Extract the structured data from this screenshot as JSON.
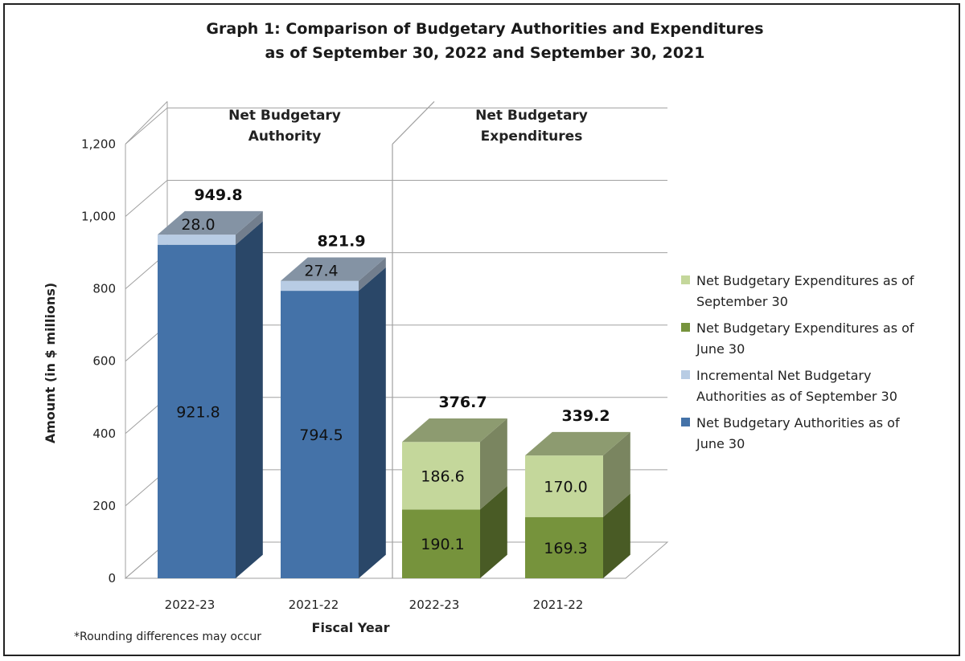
{
  "chart_data": {
    "type": "bar",
    "stacked": true,
    "title_lines": [
      "Graph 1: Comparison of Budgetary Authorities and Expenditures",
      "as of September 30, 2022 and September 30, 2021"
    ],
    "xlabel": "Fiscal Year",
    "ylabel": "Amount (in $ millions)",
    "ylim": [
      0,
      1200
    ],
    "yticks": [
      0,
      200,
      400,
      600,
      800,
      1000,
      1200
    ],
    "ytick_labels": [
      "0",
      "200",
      "400",
      "600",
      "800",
      "1,000",
      "1,200"
    ],
    "grid": true,
    "legend_position": "right",
    "panels": [
      {
        "label_lines": [
          "Net Budgetary",
          "Authority"
        ],
        "groups": [
          {
            "category": "2022-23",
            "total": 949.8,
            "total_label": "949.8",
            "segments": [
              {
                "series": "Net Budgetary Authorities as of June 30",
                "value": 921.8,
                "label": "921.8"
              },
              {
                "series": "Incremental Net Budgetary Authorities as of September 30",
                "value": 28.0,
                "label": "28.0"
              }
            ]
          },
          {
            "category": "2021-22",
            "total": 821.9,
            "total_label": "821.9",
            "segments": [
              {
                "series": "Net Budgetary Authorities as of June 30",
                "value": 794.5,
                "label": "794.5"
              },
              {
                "series": "Incremental Net Budgetary Authorities as of September 30",
                "value": 27.4,
                "label": "27.4"
              }
            ]
          }
        ]
      },
      {
        "label_lines": [
          "Net Budgetary",
          "Expenditures"
        ],
        "groups": [
          {
            "category": "2022-23",
            "total": 376.7,
            "total_label": "376.7",
            "segments": [
              {
                "series": "Net Budgetary Expenditures as of June 30",
                "value": 190.1,
                "label": "190.1"
              },
              {
                "series": "Net Budgetary Expenditures as of September 30",
                "value": 186.6,
                "label": "186.6"
              }
            ]
          },
          {
            "category": "2021-22",
            "total": 339.2,
            "total_label": "339.2",
            "segments": [
              {
                "series": "Net Budgetary Expenditures as of June 30",
                "value": 169.3,
                "label": "169.3"
              },
              {
                "series": "Net Budgetary Expenditures as of September 30",
                "value": 170.0,
                "label": "170.0"
              }
            ]
          }
        ]
      }
    ],
    "legend": [
      {
        "series": "Net Budgetary Expenditures as of September 30",
        "lines": [
          "Net Budgetary Expenditures as of",
          "September 30"
        ],
        "color": "#c4d79b"
      },
      {
        "series": "Net Budgetary Expenditures as of June 30",
        "lines": [
          "Net Budgetary Expenditures as of",
          "June 30"
        ],
        "color": "#76933c"
      },
      {
        "series": "Incremental Net Budgetary Authorities as of September 30",
        "lines": [
          "Incremental Net Budgetary",
          "Authorities as of September 30"
        ],
        "color": "#b8cce4"
      },
      {
        "series": "Net Budgetary Authorities as of June 30",
        "lines": [
          "Net Budgetary Authorities as of",
          "June 30"
        ],
        "color": "#4472a8"
      }
    ],
    "note": "*Rounding differences may occur"
  }
}
